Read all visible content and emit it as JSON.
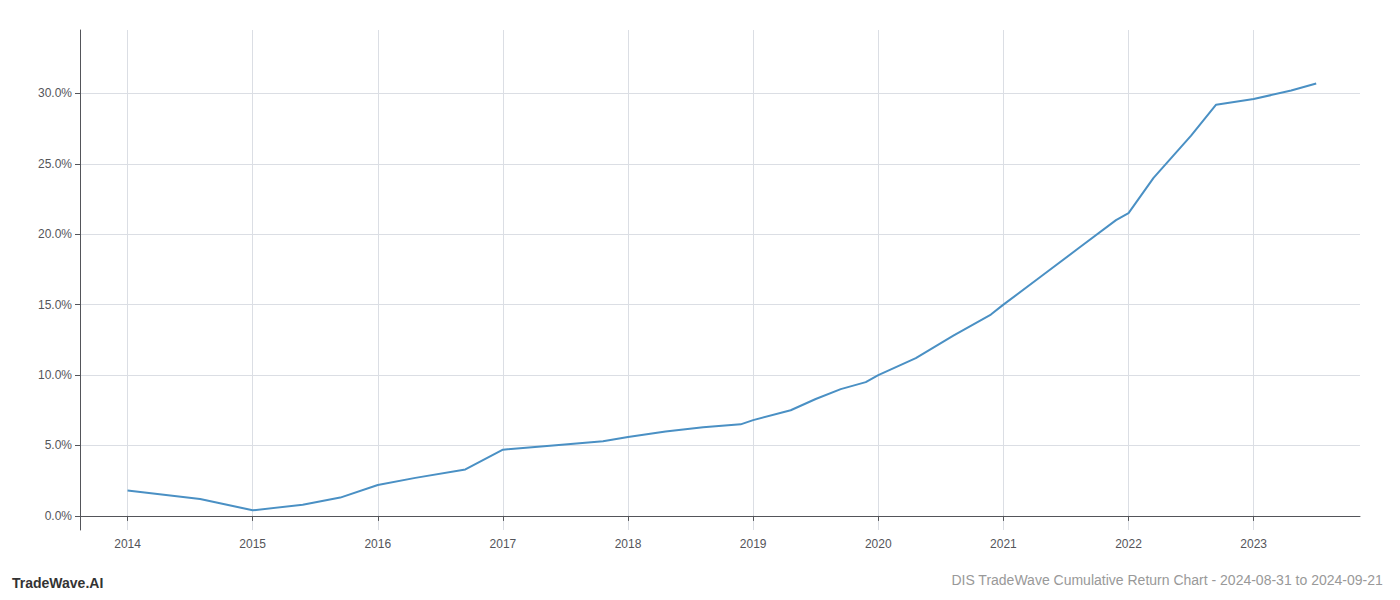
{
  "chart_data": {
    "type": "line",
    "title": "DIS TradeWave Cumulative Return Chart - 2024-08-31 to 2024-09-21",
    "annotations": [
      "TradeWave.AI"
    ],
    "x": [
      2014.0,
      2014.58,
      2015.0,
      2015.4,
      2015.7,
      2016.0,
      2016.3,
      2016.7,
      2017.0,
      2017.4,
      2017.8,
      2018.0,
      2018.3,
      2018.6,
      2018.9,
      2019.0,
      2019.3,
      2019.5,
      2019.7,
      2019.9,
      2020.0,
      2020.3,
      2020.6,
      2020.9,
      2021.0,
      2021.3,
      2021.6,
      2021.9,
      2022.0,
      2022.2,
      2022.5,
      2022.7,
      2023.0,
      2023.3,
      2023.5
    ],
    "values": [
      0.018,
      0.012,
      0.004,
      0.008,
      0.013,
      0.022,
      0.027,
      0.033,
      0.047,
      0.05,
      0.053,
      0.056,
      0.06,
      0.063,
      0.065,
      0.068,
      0.075,
      0.083,
      0.09,
      0.095,
      0.1,
      0.112,
      0.128,
      0.143,
      0.15,
      0.17,
      0.19,
      0.21,
      0.215,
      0.24,
      0.27,
      0.292,
      0.296,
      0.302,
      0.307
    ],
    "color": "#4a90c4",
    "xlim": [
      2013.62,
      2023.85
    ],
    "ylim": [
      -0.01,
      0.345
    ],
    "xticks": [
      2014,
      2015,
      2016,
      2017,
      2018,
      2019,
      2020,
      2021,
      2022,
      2023
    ],
    "yticks": [
      {
        "value": 0.0,
        "label": "0.0%"
      },
      {
        "value": 0.05,
        "label": "5.0%"
      },
      {
        "value": 0.1,
        "label": "10.0%"
      },
      {
        "value": 0.15,
        "label": "15.0%"
      },
      {
        "value": 0.2,
        "label": "20.0%"
      },
      {
        "value": 0.25,
        "label": "25.0%"
      },
      {
        "value": 0.3,
        "label": "30.0%"
      }
    ],
    "grid": true
  }
}
